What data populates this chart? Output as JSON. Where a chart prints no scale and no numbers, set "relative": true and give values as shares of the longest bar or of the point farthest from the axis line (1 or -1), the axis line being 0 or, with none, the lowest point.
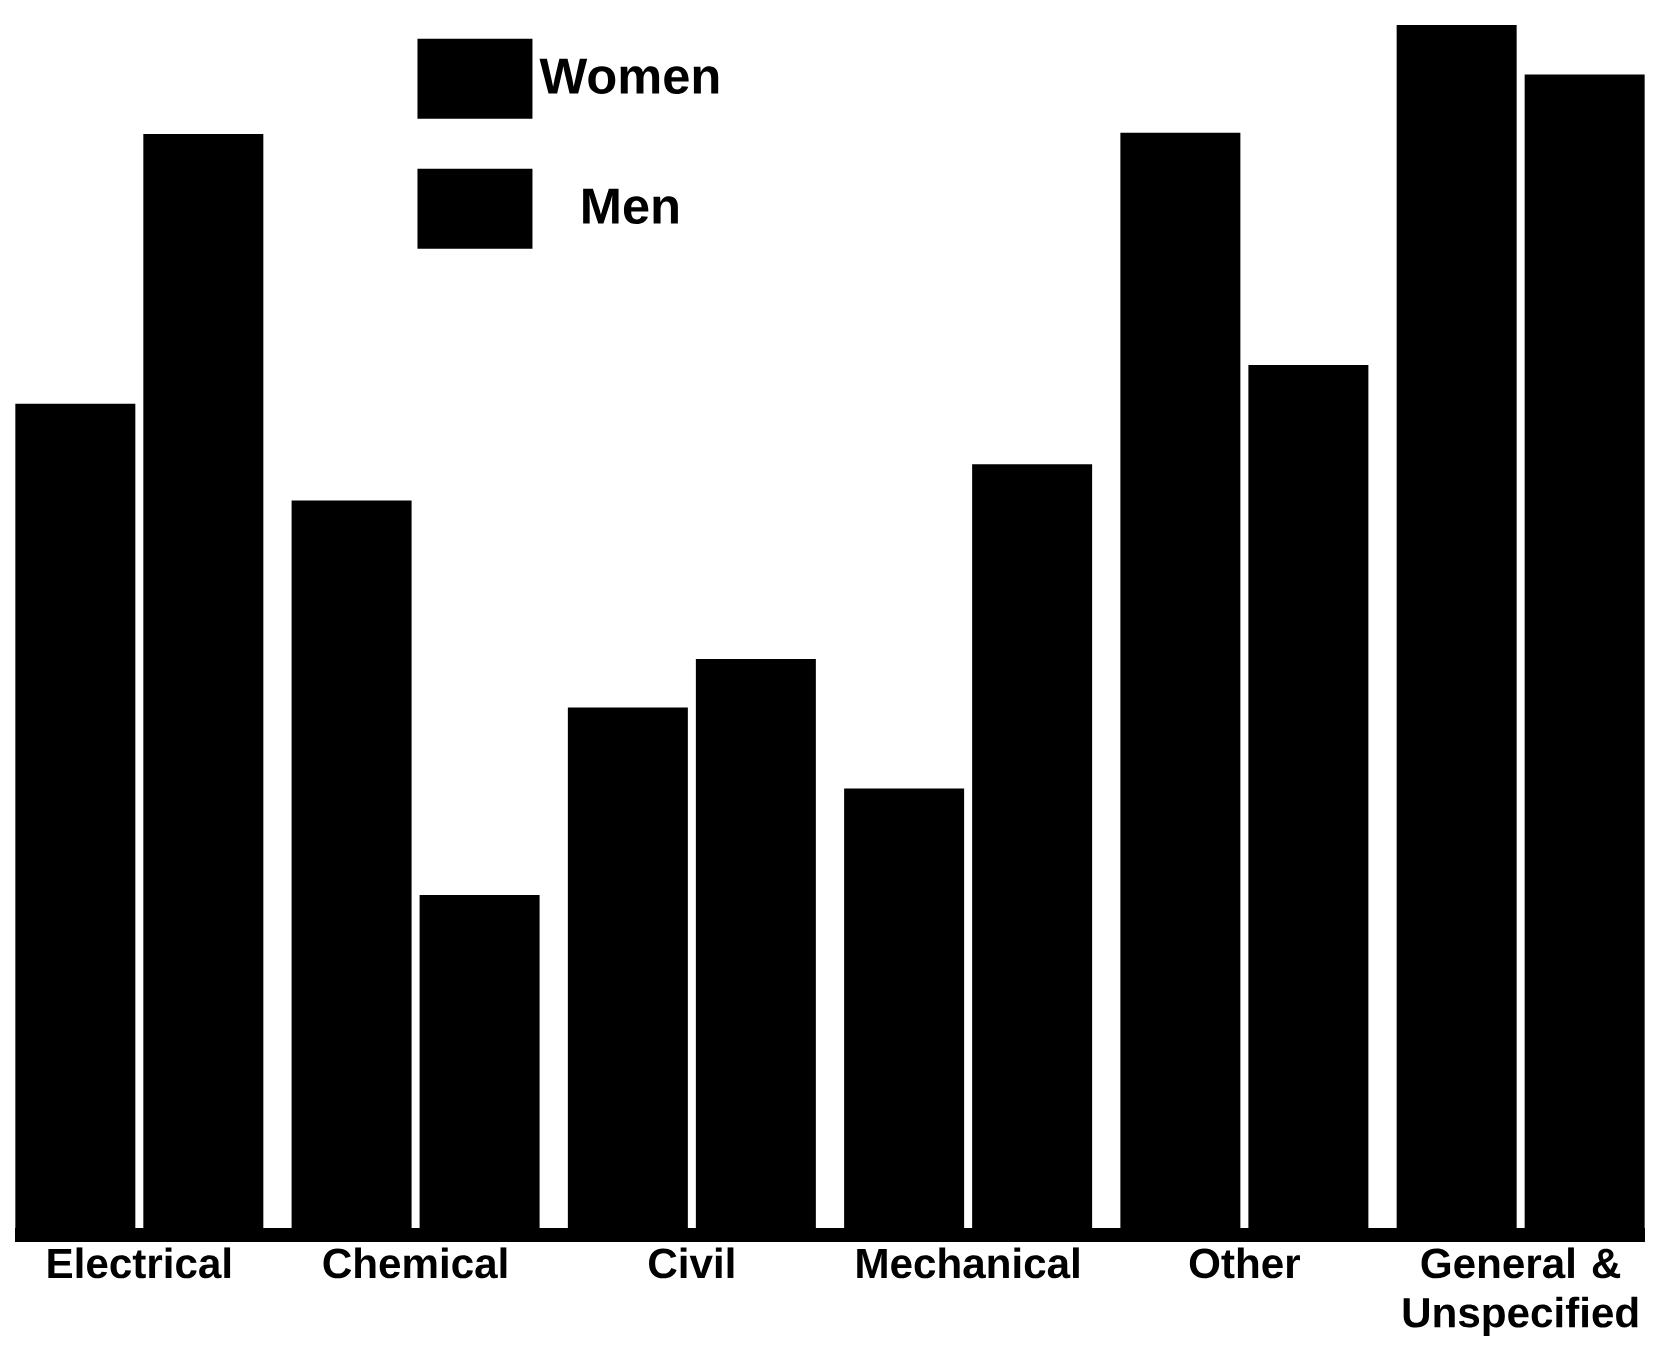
{
  "chart_data": {
    "type": "bar",
    "relative": true,
    "categories": [
      "Electrical",
      "Chemical",
      "Civil",
      "Mechanical",
      "Other",
      "General & Unspecified"
    ],
    "series": [
      {
        "name": "Women",
        "color": "#000000",
        "values": [
          0.687,
          0.607,
          0.436,
          0.369,
          0.911,
          1.0
        ]
      },
      {
        "name": "Men",
        "color": "#000000",
        "values": [
          0.91,
          0.281,
          0.476,
          0.637,
          0.719,
          0.959
        ]
      }
    ],
    "legend": "top left"
  }
}
